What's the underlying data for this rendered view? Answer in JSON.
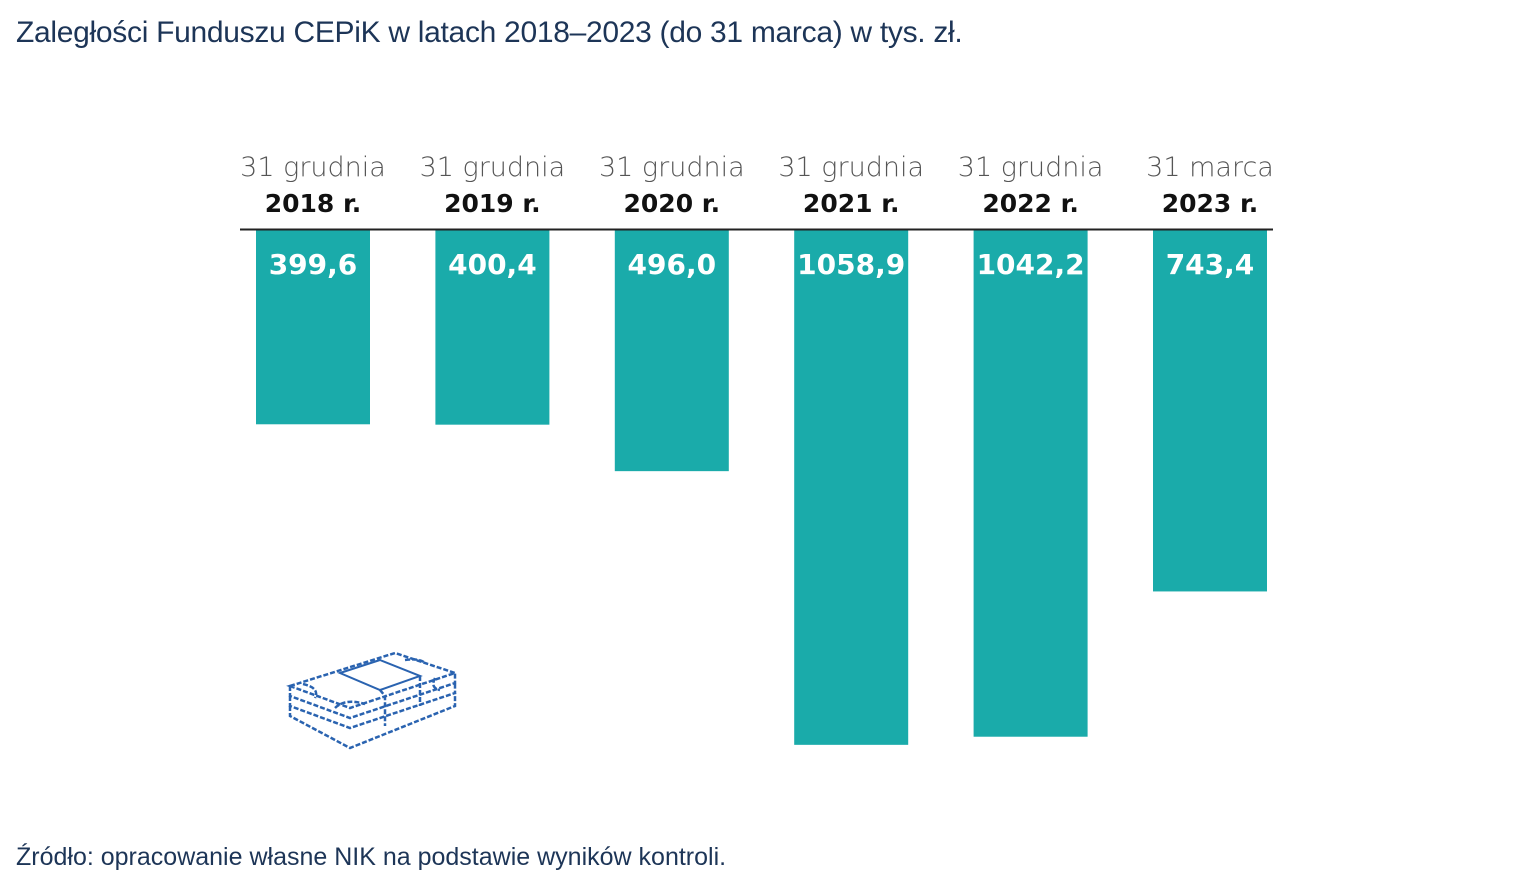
{
  "title": "Zaległości Funduszu CEPiK w latach 2018–2023 (do 31 marca) w tys. zł.",
  "source": "Źródło: opracowanie własne NIK na podstawie wyników kontroli.",
  "icon": "money-stack-icon",
  "chart_data": {
    "type": "bar",
    "orientation": "vertical-downward",
    "title": "Zaległości Funduszu CEPiK w latach 2018–2023 (do 31 marca) w tys. zł.",
    "categories": [
      {
        "day": "31 grudnia",
        "year": "2018 r."
      },
      {
        "day": "31 grudnia",
        "year": "2019 r."
      },
      {
        "day": "31 grudnia",
        "year": "2020 r."
      },
      {
        "day": "31 grudnia",
        "year": "2021 r."
      },
      {
        "day": "31 grudnia",
        "year": "2022 r."
      },
      {
        "day": "31 marca",
        "year": "2023 r."
      }
    ],
    "values": [
      399.6,
      400.4,
      496.0,
      1058.9,
      1042.2,
      743.4
    ],
    "value_labels": [
      "399,6",
      "400,4",
      "496,0",
      "1058,9",
      "1042,2",
      "743,4"
    ],
    "ylim": [
      0,
      1060
    ],
    "grid": false,
    "bar_color": "#1aabaa",
    "title_color": "#1d3557"
  }
}
